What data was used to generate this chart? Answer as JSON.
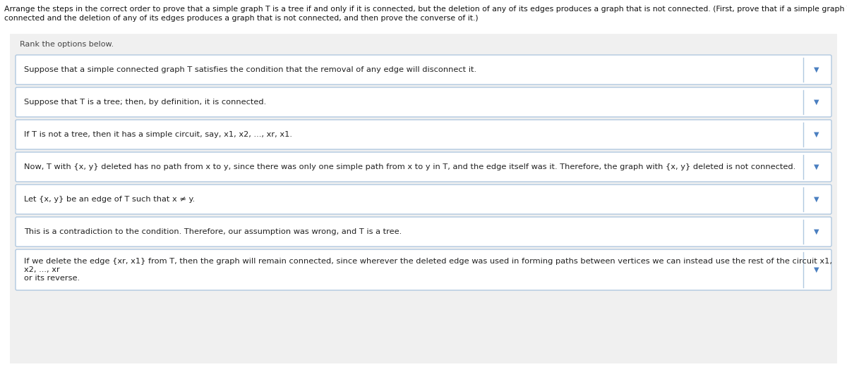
{
  "title_line1": "Arrange the steps in the correct order to prove that a simple graph T is a tree if and only if it is connected, but the deletion of any of its edges produces a graph that is not connected. (First, prove that if a simple graph T is a tree, then it is",
  "title_line2": "connected and the deletion of any of its edges produces a graph that is not connected, and then prove the converse of it.)",
  "subtitle": "Rank the options below.",
  "page_bg": "#ffffff",
  "panel_bg": "#f0f0f0",
  "box_bg": "#ffffff",
  "box_border": "#b0c8e0",
  "divider_color": "#b0c8e0",
  "dropdown_arrow_color": "#4a7fc0",
  "text_color": "#222222",
  "subtitle_color": "#444444",
  "title_color": "#111111",
  "items": [
    "Suppose that a simple connected graph T satisfies the condition that the removal of any edge will disconnect it.",
    "Suppose that T is a tree; then, by definition, it is connected.",
    "If T is not a tree, then it has a simple circuit, say, x1, x2, ..., xr, x1.",
    "Now, T with {x, y} deleted has no path from x to y, since there was only one simple path from x to y in T, and the edge itself was it. Therefore, the graph with {x, y} deleted is not connected.",
    "Let {x, y} be an edge of T such that x ≠ y.",
    "This is a contradiction to the condition. Therefore, our assumption was wrong, and T is a tree.",
    "If we delete the edge {xr, x1} from T, then the graph will remain connected, since wherever the deleted edge was used in forming paths between vertices we can instead use the rest of the circuit x1, x2, ..., xr\nor its reverse."
  ],
  "title_fontsize": 7.8,
  "subtitle_fontsize": 8.0,
  "item_fontsize": 8.2,
  "figsize": [
    12.0,
    5.21
  ],
  "dpi": 100
}
